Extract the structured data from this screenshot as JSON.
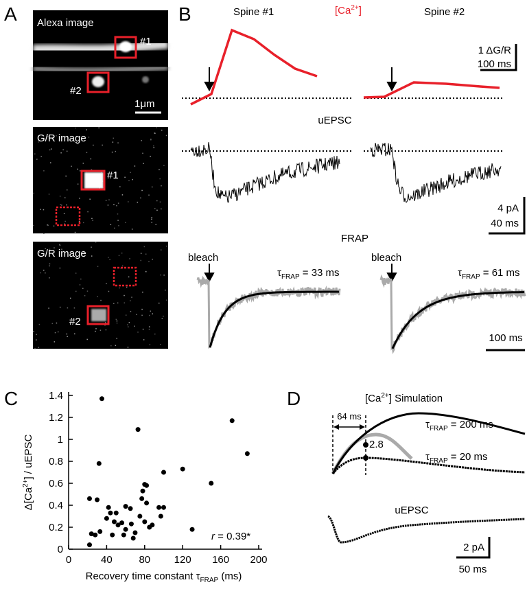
{
  "panels": {
    "a": {
      "label": "A",
      "alexa": "Alexa image",
      "s1": "#1",
      "s2": "#2",
      "scale": "1μm",
      "gr1": "G/R image",
      "gr1_s1": "#1",
      "gr2": "G/R image",
      "gr2_s2": "#2"
    },
    "b": {
      "label": "B",
      "spine1": "Spine #1",
      "ca_pre": "[Ca",
      "ca_sup": "2+",
      "ca_post": "]",
      "spine2": "Spine #2",
      "scale_dgr": "1 ΔG/R",
      "scale_ms1": "100 ms",
      "uepsc": "uEPSC",
      "scale_pa": "4 pA",
      "scale_ms2": "40 ms",
      "frap": "FRAP",
      "bleach1": "bleach",
      "tau1": {
        "sym": "τ",
        "sub": "FRAP",
        "rest": " = 33 ms"
      },
      "bleach2": "bleach",
      "tau2": {
        "sym": "τ",
        "sub": "FRAP",
        "rest": " = 61 ms"
      },
      "scale_ms3": "100 ms"
    },
    "d": {
      "label": "D",
      "title_pre": "[Ca",
      "title_sup": "2+",
      "title_post": "] Simulation",
      "interval": "64 ms",
      "tau200": {
        "sym": "τ",
        "sub": "FRAP",
        "rest": " = 200 ms"
      },
      "ratio": "2.8",
      "tau20": {
        "sym": "τ",
        "sub": "FRAP",
        "rest": " = 20 ms"
      },
      "uepsc": "uEPSC",
      "scale_pa": "2 pA",
      "scale_ms": "50 ms"
    }
  },
  "chart_data": {
    "type": "scatter",
    "panel_label": "C",
    "xlabel": {
      "text": "Recovery time constant τ",
      "sub": "FRAP",
      "text2": " (ms)"
    },
    "ylabel": {
      "text": "Δ[Ca",
      "sup": "2+",
      "text2": "] / uEPSC"
    },
    "annotation": {
      "sym": "r",
      "rest": " = 0.39*"
    },
    "x": [
      35,
      73,
      172,
      188,
      32,
      22,
      30,
      120,
      100,
      82,
      80,
      78,
      150,
      77,
      42,
      44,
      50,
      60,
      65,
      75,
      82,
      95,
      100,
      97,
      48,
      52,
      56,
      60,
      66,
      40,
      33,
      24,
      28,
      46,
      58,
      68,
      85,
      88,
      80,
      22,
      130,
      70
    ],
    "values": [
      1.37,
      1.09,
      1.17,
      0.87,
      0.78,
      0.46,
      0.45,
      0.73,
      0.7,
      0.58,
      0.59,
      0.53,
      0.6,
      0.46,
      0.38,
      0.33,
      0.33,
      0.39,
      0.37,
      0.3,
      0.42,
      0.38,
      0.38,
      0.3,
      0.25,
      0.22,
      0.24,
      0.18,
      0.23,
      0.28,
      0.16,
      0.14,
      0.13,
      0.13,
      0.13,
      0.1,
      0.2,
      0.22,
      0.25,
      0.04,
      0.18,
      0.15
    ],
    "color": "#000000",
    "xlim": [
      0,
      200
    ],
    "ylim": [
      0,
      1.4
    ],
    "xticks": [
      0,
      40,
      80,
      120,
      160,
      200
    ],
    "yticks": [
      0,
      0.2,
      0.4,
      0.6,
      0.8,
      1,
      1.2,
      1.4
    ]
  }
}
